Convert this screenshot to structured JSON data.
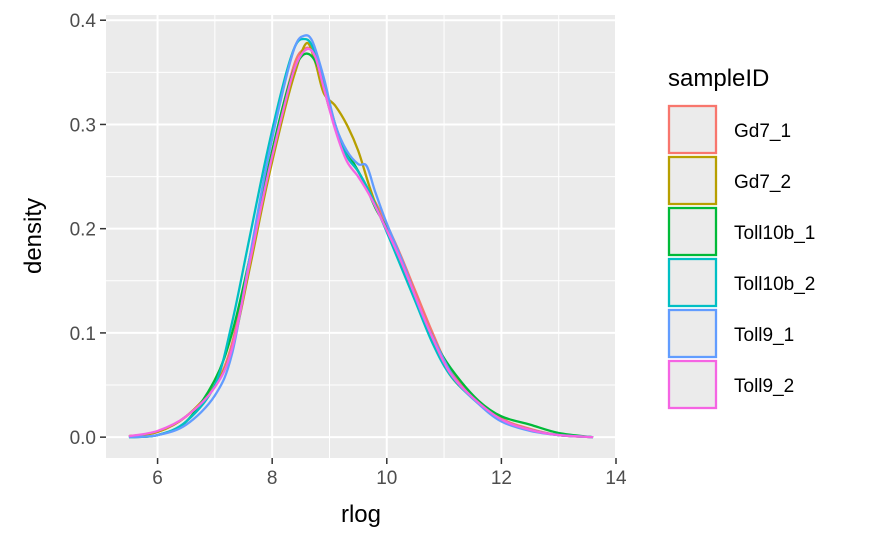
{
  "chart_data": {
    "type": "line",
    "subtype": "density",
    "xlabel": "rlog",
    "ylabel": "density",
    "xlim": [
      5.1,
      14.0
    ],
    "ylim": [
      -0.02,
      0.405
    ],
    "xticks": [
      6,
      8,
      10,
      12,
      14
    ],
    "yticks": [
      0.0,
      0.1,
      0.2,
      0.3,
      0.4
    ],
    "xtick_labels": [
      "6",
      "8",
      "10",
      "12",
      "14"
    ],
    "ytick_labels": [
      "0.0",
      "0.1",
      "0.2",
      "0.3",
      "0.4"
    ],
    "grid": true,
    "background": "#ebebeb",
    "legend": {
      "title": "sampleID",
      "position": "right"
    },
    "series": [
      {
        "name": "Gd7_1",
        "color": "#F8766D",
        "x": [
          5.5,
          6.0,
          6.5,
          7.0,
          7.3,
          7.6,
          7.9,
          8.2,
          8.4,
          8.55,
          8.7,
          8.9,
          9.1,
          9.3,
          9.5,
          9.7,
          9.9,
          10.2,
          10.5,
          10.8,
          11.1,
          11.5,
          12.0,
          12.5,
          13.0,
          13.6
        ],
        "y": [
          0.001,
          0.005,
          0.02,
          0.05,
          0.09,
          0.17,
          0.25,
          0.32,
          0.36,
          0.372,
          0.37,
          0.34,
          0.3,
          0.27,
          0.255,
          0.235,
          0.215,
          0.18,
          0.14,
          0.1,
          0.065,
          0.04,
          0.018,
          0.008,
          0.002,
          0.0
        ]
      },
      {
        "name": "Gd7_2",
        "color": "#B79F00",
        "x": [
          5.5,
          6.0,
          6.5,
          7.0,
          7.3,
          7.6,
          7.9,
          8.2,
          8.4,
          8.6,
          8.75,
          8.9,
          9.1,
          9.3,
          9.5,
          9.7,
          9.9,
          10.2,
          10.5,
          10.8,
          11.1,
          11.5,
          12.0,
          12.5,
          13.0,
          13.6
        ],
        "y": [
          0.001,
          0.005,
          0.02,
          0.05,
          0.085,
          0.16,
          0.24,
          0.31,
          0.35,
          0.378,
          0.36,
          0.33,
          0.318,
          0.3,
          0.275,
          0.24,
          0.21,
          0.175,
          0.135,
          0.095,
          0.06,
          0.038,
          0.017,
          0.007,
          0.002,
          0.0
        ]
      },
      {
        "name": "Toll10b_1",
        "color": "#00BA38",
        "x": [
          5.5,
          6.0,
          6.5,
          7.0,
          7.3,
          7.6,
          7.9,
          8.2,
          8.4,
          8.6,
          8.8,
          9.0,
          9.2,
          9.4,
          9.6,
          9.8,
          10.0,
          10.3,
          10.6,
          10.9,
          11.2,
          11.6,
          12.0,
          12.5,
          13.0,
          13.6
        ],
        "y": [
          0.0,
          0.002,
          0.015,
          0.055,
          0.1,
          0.17,
          0.25,
          0.32,
          0.355,
          0.368,
          0.355,
          0.315,
          0.285,
          0.265,
          0.245,
          0.22,
          0.2,
          0.16,
          0.12,
          0.085,
          0.06,
          0.035,
          0.02,
          0.012,
          0.004,
          0.0
        ]
      },
      {
        "name": "Toll10b_2",
        "color": "#00BFC4",
        "x": [
          5.5,
          6.0,
          6.5,
          7.0,
          7.3,
          7.6,
          7.9,
          8.2,
          8.4,
          8.55,
          8.7,
          8.9,
          9.1,
          9.3,
          9.5,
          9.7,
          9.9,
          10.2,
          10.5,
          10.8,
          11.1,
          11.5,
          12.0,
          12.5,
          13.0,
          13.6
        ],
        "y": [
          0.0,
          0.002,
          0.015,
          0.05,
          0.11,
          0.19,
          0.27,
          0.34,
          0.375,
          0.382,
          0.375,
          0.34,
          0.3,
          0.27,
          0.255,
          0.235,
          0.21,
          0.17,
          0.13,
          0.09,
          0.06,
          0.037,
          0.016,
          0.007,
          0.002,
          0.0
        ]
      },
      {
        "name": "Toll9_1",
        "color": "#619CFF",
        "x": [
          5.5,
          6.0,
          6.5,
          7.0,
          7.3,
          7.6,
          7.9,
          8.2,
          8.4,
          8.55,
          8.7,
          8.9,
          9.1,
          9.3,
          9.5,
          9.65,
          9.8,
          10.0,
          10.3,
          10.6,
          10.9,
          11.2,
          11.6,
          12.0,
          12.5,
          13.0,
          13.6
        ],
        "y": [
          0.0,
          0.002,
          0.012,
          0.04,
          0.08,
          0.17,
          0.26,
          0.335,
          0.375,
          0.385,
          0.38,
          0.345,
          0.3,
          0.275,
          0.262,
          0.26,
          0.235,
          0.205,
          0.165,
          0.12,
          0.085,
          0.055,
          0.032,
          0.015,
          0.006,
          0.002,
          0.0
        ]
      },
      {
        "name": "Toll9_2",
        "color": "#F564E3",
        "x": [
          5.5,
          6.0,
          6.5,
          7.0,
          7.3,
          7.6,
          7.9,
          8.2,
          8.4,
          8.6,
          8.75,
          8.9,
          9.1,
          9.3,
          9.5,
          9.7,
          9.9,
          10.2,
          10.5,
          10.8,
          11.1,
          11.5,
          12.0,
          12.5,
          13.0,
          13.6
        ],
        "y": [
          0.001,
          0.006,
          0.02,
          0.048,
          0.085,
          0.165,
          0.245,
          0.315,
          0.355,
          0.372,
          0.365,
          0.335,
          0.295,
          0.265,
          0.25,
          0.232,
          0.21,
          0.175,
          0.135,
          0.095,
          0.062,
          0.038,
          0.017,
          0.007,
          0.002,
          0.0
        ]
      }
    ]
  }
}
